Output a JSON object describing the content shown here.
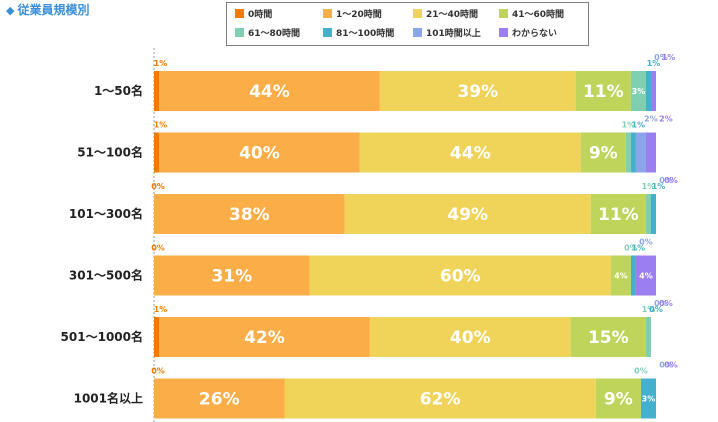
{
  "section_title": "従業員規模別",
  "chart_data": {
    "type": "bar",
    "orientation": "horizontal",
    "stacked": true,
    "title": "従業員規模別",
    "categories": [
      "1〜50名",
      "51〜100名",
      "101〜300名",
      "301〜500名",
      "501〜1000名",
      "1001名以上"
    ],
    "series": [
      {
        "name": "0時間",
        "color": "#f47a00",
        "values": [
          1,
          1,
          0,
          0,
          1,
          0
        ]
      },
      {
        "name": "1〜20時間",
        "color": "#fbae48",
        "values": [
          44,
          40,
          38,
          31,
          42,
          26
        ]
      },
      {
        "name": "21〜40時間",
        "color": "#f0d45a",
        "values": [
          39,
          44,
          49,
          60,
          40,
          62
        ]
      },
      {
        "name": "41〜60時間",
        "color": "#bed45b",
        "values": [
          11,
          9,
          11,
          4,
          15,
          9
        ]
      },
      {
        "name": "61〜80時間",
        "color": "#7fcfb0",
        "values": [
          3,
          1,
          1,
          0,
          1,
          0
        ]
      },
      {
        "name": "81〜100時間",
        "color": "#45b0cc",
        "values": [
          1,
          1,
          1,
          1,
          0,
          3
        ]
      },
      {
        "name": "101時間以上",
        "color": "#8aa6e8",
        "values": [
          0,
          2,
          0,
          0,
          0,
          0
        ]
      },
      {
        "name": "わからない",
        "color": "#9b7ef0",
        "values": [
          1,
          2,
          0,
          4,
          0,
          0
        ]
      }
    ],
    "labels": [
      [
        "1%",
        "44%",
        "39%",
        "11%",
        "3%",
        "1%",
        "0%",
        "1%"
      ],
      [
        "1%",
        "40%",
        "44%",
        "9%",
        "1%",
        "1%",
        "2%",
        "2%"
      ],
      [
        "0%",
        "38%",
        "49%",
        "11%",
        "1%",
        "1%",
        "0%",
        "0%"
      ],
      [
        "0%",
        "31%",
        "60%",
        "4%",
        "0%",
        "1%",
        "0%",
        "4%"
      ],
      [
        "1%",
        "42%",
        "40%",
        "15%",
        "1%",
        "0%",
        "0%",
        "0%"
      ],
      [
        "0%",
        "26%",
        "62%",
        "9%",
        "0%",
        "3%",
        "0%",
        "0%"
      ]
    ],
    "xlim": [
      0,
      100
    ],
    "legend_position": "top",
    "grid": false
  }
}
